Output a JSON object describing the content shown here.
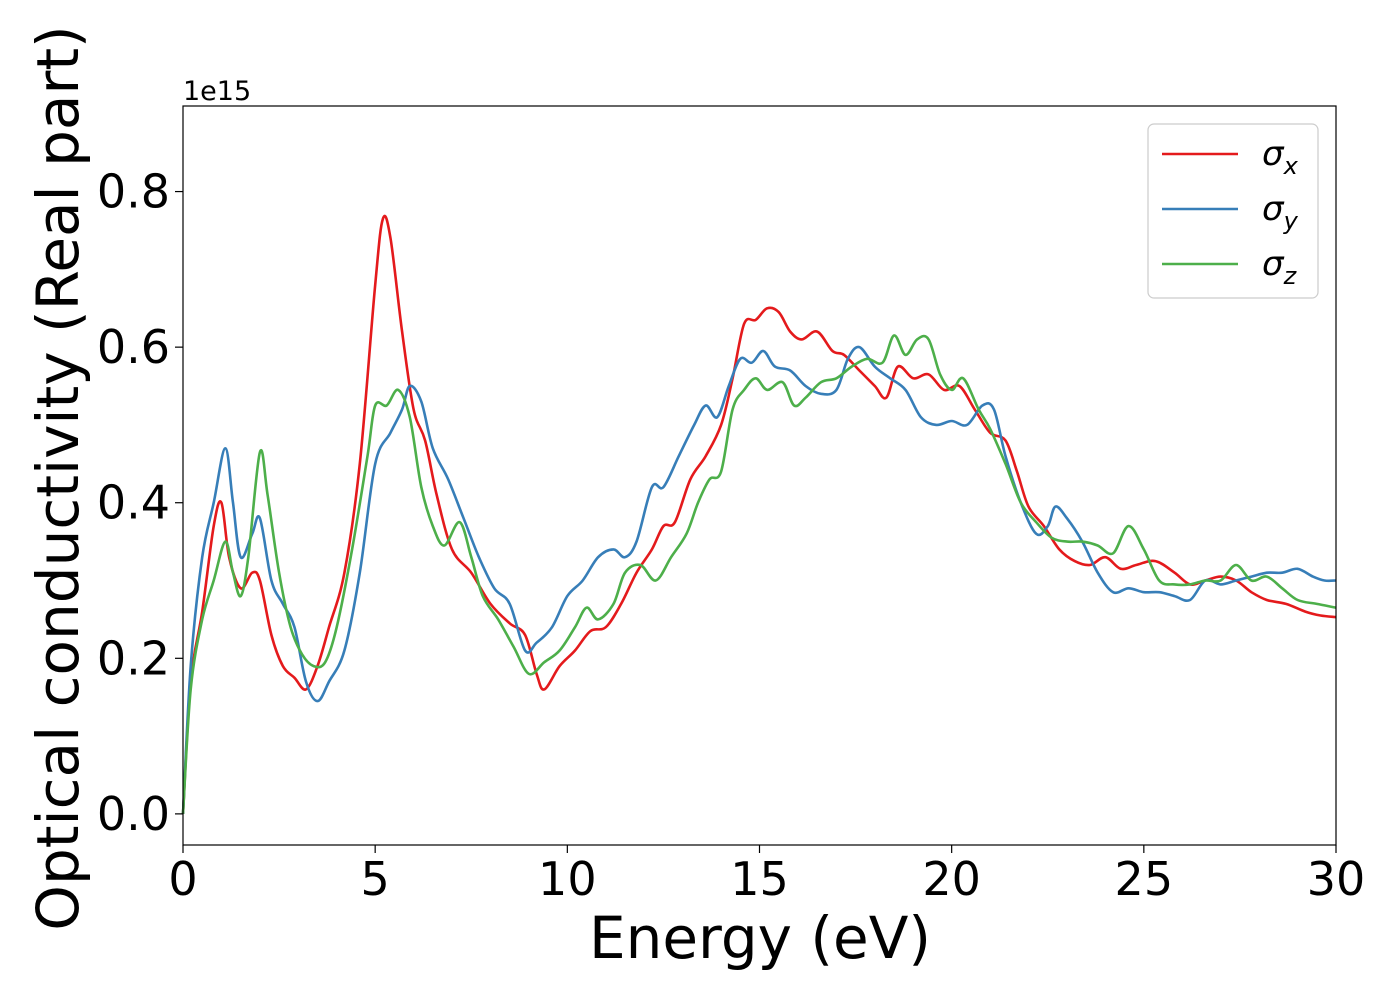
{
  "chart_data": {
    "type": "line",
    "title": "",
    "xlabel": "Energy (eV)",
    "ylabel": "Optical conductivity (Real part)",
    "y_offset_text": "1e15",
    "xlim": [
      0,
      30
    ],
    "ylim": [
      -0.04,
      0.91
    ],
    "xticks": [
      0,
      5,
      10,
      15,
      20,
      25,
      30
    ],
    "yticks": [
      0.0,
      0.2,
      0.4,
      0.6,
      0.8
    ],
    "grid": false,
    "legend_position": "top-right",
    "series": [
      {
        "name": "σx",
        "symbol": "σ",
        "subscript": "x",
        "color": "#e41a1c",
        "points": [
          [
            0,
            0.0
          ],
          [
            0.2,
            0.17
          ],
          [
            0.5,
            0.26
          ],
          [
            0.8,
            0.37
          ],
          [
            1.0,
            0.4
          ],
          [
            1.2,
            0.33
          ],
          [
            1.5,
            0.29
          ],
          [
            1.8,
            0.31
          ],
          [
            2.0,
            0.3
          ],
          [
            2.3,
            0.23
          ],
          [
            2.6,
            0.19
          ],
          [
            2.9,
            0.175
          ],
          [
            3.2,
            0.16
          ],
          [
            3.5,
            0.19
          ],
          [
            3.8,
            0.24
          ],
          [
            4.2,
            0.31
          ],
          [
            4.6,
            0.45
          ],
          [
            5.0,
            0.68
          ],
          [
            5.2,
            0.765
          ],
          [
            5.4,
            0.74
          ],
          [
            5.7,
            0.62
          ],
          [
            6.0,
            0.52
          ],
          [
            6.3,
            0.48
          ],
          [
            6.6,
            0.41
          ],
          [
            7.0,
            0.34
          ],
          [
            7.5,
            0.31
          ],
          [
            8.0,
            0.27
          ],
          [
            8.5,
            0.245
          ],
          [
            8.9,
            0.23
          ],
          [
            9.2,
            0.18
          ],
          [
            9.4,
            0.16
          ],
          [
            9.8,
            0.19
          ],
          [
            10.2,
            0.21
          ],
          [
            10.6,
            0.235
          ],
          [
            11.0,
            0.24
          ],
          [
            11.4,
            0.27
          ],
          [
            11.8,
            0.31
          ],
          [
            12.2,
            0.34
          ],
          [
            12.5,
            0.37
          ],
          [
            12.8,
            0.375
          ],
          [
            13.2,
            0.43
          ],
          [
            13.6,
            0.46
          ],
          [
            14.0,
            0.5
          ],
          [
            14.3,
            0.56
          ],
          [
            14.6,
            0.63
          ],
          [
            14.9,
            0.635
          ],
          [
            15.2,
            0.65
          ],
          [
            15.5,
            0.645
          ],
          [
            15.8,
            0.62
          ],
          [
            16.1,
            0.61
          ],
          [
            16.5,
            0.62
          ],
          [
            16.9,
            0.595
          ],
          [
            17.2,
            0.59
          ],
          [
            17.6,
            0.57
          ],
          [
            18.0,
            0.55
          ],
          [
            18.3,
            0.535
          ],
          [
            18.6,
            0.575
          ],
          [
            19.0,
            0.56
          ],
          [
            19.4,
            0.565
          ],
          [
            19.8,
            0.545
          ],
          [
            20.2,
            0.55
          ],
          [
            20.6,
            0.52
          ],
          [
            21.0,
            0.49
          ],
          [
            21.4,
            0.48
          ],
          [
            21.7,
            0.44
          ],
          [
            22.0,
            0.395
          ],
          [
            22.4,
            0.37
          ],
          [
            22.8,
            0.34
          ],
          [
            23.2,
            0.325
          ],
          [
            23.6,
            0.32
          ],
          [
            24.0,
            0.33
          ],
          [
            24.4,
            0.315
          ],
          [
            24.8,
            0.32
          ],
          [
            25.3,
            0.325
          ],
          [
            25.8,
            0.31
          ],
          [
            26.2,
            0.295
          ],
          [
            26.6,
            0.3
          ],
          [
            27.0,
            0.305
          ],
          [
            27.4,
            0.3
          ],
          [
            27.8,
            0.285
          ],
          [
            28.2,
            0.275
          ],
          [
            28.7,
            0.27
          ],
          [
            29.2,
            0.26
          ],
          [
            29.6,
            0.255
          ],
          [
            30.0,
            0.253
          ]
        ]
      },
      {
        "name": "σy",
        "symbol": "σ",
        "subscript": "y",
        "color": "#377eb8",
        "points": [
          [
            0,
            0.0
          ],
          [
            0.2,
            0.19
          ],
          [
            0.5,
            0.33
          ],
          [
            0.8,
            0.4
          ],
          [
            1.1,
            0.47
          ],
          [
            1.3,
            0.4
          ],
          [
            1.5,
            0.33
          ],
          [
            1.8,
            0.36
          ],
          [
            2.0,
            0.38
          ],
          [
            2.3,
            0.3
          ],
          [
            2.6,
            0.27
          ],
          [
            2.9,
            0.24
          ],
          [
            3.2,
            0.17
          ],
          [
            3.5,
            0.145
          ],
          [
            3.8,
            0.17
          ],
          [
            4.2,
            0.21
          ],
          [
            4.6,
            0.31
          ],
          [
            5.0,
            0.45
          ],
          [
            5.4,
            0.49
          ],
          [
            5.7,
            0.52
          ],
          [
            5.9,
            0.55
          ],
          [
            6.2,
            0.53
          ],
          [
            6.5,
            0.47
          ],
          [
            6.9,
            0.43
          ],
          [
            7.3,
            0.38
          ],
          [
            7.7,
            0.33
          ],
          [
            8.1,
            0.29
          ],
          [
            8.5,
            0.27
          ],
          [
            8.9,
            0.21
          ],
          [
            9.2,
            0.22
          ],
          [
            9.6,
            0.24
          ],
          [
            10.0,
            0.28
          ],
          [
            10.4,
            0.3
          ],
          [
            10.8,
            0.33
          ],
          [
            11.2,
            0.34
          ],
          [
            11.5,
            0.33
          ],
          [
            11.8,
            0.35
          ],
          [
            12.2,
            0.42
          ],
          [
            12.5,
            0.42
          ],
          [
            12.9,
            0.46
          ],
          [
            13.3,
            0.5
          ],
          [
            13.6,
            0.525
          ],
          [
            13.9,
            0.51
          ],
          [
            14.2,
            0.55
          ],
          [
            14.5,
            0.585
          ],
          [
            14.8,
            0.58
          ],
          [
            15.1,
            0.595
          ],
          [
            15.4,
            0.575
          ],
          [
            15.8,
            0.57
          ],
          [
            16.2,
            0.55
          ],
          [
            16.6,
            0.54
          ],
          [
            17.0,
            0.545
          ],
          [
            17.3,
            0.585
          ],
          [
            17.6,
            0.6
          ],
          [
            18.0,
            0.575
          ],
          [
            18.4,
            0.56
          ],
          [
            18.8,
            0.545
          ],
          [
            19.2,
            0.51
          ],
          [
            19.6,
            0.5
          ],
          [
            20.0,
            0.505
          ],
          [
            20.4,
            0.5
          ],
          [
            20.8,
            0.525
          ],
          [
            21.1,
            0.52
          ],
          [
            21.4,
            0.46
          ],
          [
            21.8,
            0.4
          ],
          [
            22.2,
            0.36
          ],
          [
            22.5,
            0.37
          ],
          [
            22.7,
            0.395
          ],
          [
            23.0,
            0.38
          ],
          [
            23.4,
            0.35
          ],
          [
            23.8,
            0.31
          ],
          [
            24.2,
            0.285
          ],
          [
            24.6,
            0.29
          ],
          [
            25.0,
            0.285
          ],
          [
            25.4,
            0.285
          ],
          [
            25.8,
            0.28
          ],
          [
            26.2,
            0.275
          ],
          [
            26.6,
            0.3
          ],
          [
            27.0,
            0.295
          ],
          [
            27.4,
            0.3
          ],
          [
            27.8,
            0.305
          ],
          [
            28.2,
            0.31
          ],
          [
            28.6,
            0.31
          ],
          [
            29.0,
            0.315
          ],
          [
            29.4,
            0.305
          ],
          [
            29.7,
            0.3
          ],
          [
            30.0,
            0.3
          ]
        ]
      },
      {
        "name": "σz",
        "symbol": "σ",
        "subscript": "z",
        "color": "#4daf4a",
        "points": [
          [
            0,
            0.0
          ],
          [
            0.2,
            0.16
          ],
          [
            0.5,
            0.25
          ],
          [
            0.8,
            0.3
          ],
          [
            1.1,
            0.35
          ],
          [
            1.3,
            0.31
          ],
          [
            1.5,
            0.28
          ],
          [
            1.7,
            0.33
          ],
          [
            2.0,
            0.465
          ],
          [
            2.2,
            0.41
          ],
          [
            2.5,
            0.31
          ],
          [
            2.8,
            0.24
          ],
          [
            3.1,
            0.205
          ],
          [
            3.4,
            0.19
          ],
          [
            3.7,
            0.195
          ],
          [
            4.0,
            0.24
          ],
          [
            4.4,
            0.34
          ],
          [
            4.8,
            0.46
          ],
          [
            5.0,
            0.525
          ],
          [
            5.3,
            0.525
          ],
          [
            5.6,
            0.545
          ],
          [
            5.9,
            0.51
          ],
          [
            6.2,
            0.42
          ],
          [
            6.5,
            0.37
          ],
          [
            6.8,
            0.345
          ],
          [
            7.2,
            0.375
          ],
          [
            7.5,
            0.33
          ],
          [
            7.8,
            0.28
          ],
          [
            8.2,
            0.25
          ],
          [
            8.6,
            0.215
          ],
          [
            9.0,
            0.18
          ],
          [
            9.4,
            0.195
          ],
          [
            9.8,
            0.21
          ],
          [
            10.2,
            0.24
          ],
          [
            10.5,
            0.265
          ],
          [
            10.8,
            0.25
          ],
          [
            11.2,
            0.27
          ],
          [
            11.5,
            0.31
          ],
          [
            11.9,
            0.32
          ],
          [
            12.3,
            0.3
          ],
          [
            12.7,
            0.33
          ],
          [
            13.1,
            0.36
          ],
          [
            13.4,
            0.4
          ],
          [
            13.7,
            0.43
          ],
          [
            14.0,
            0.44
          ],
          [
            14.3,
            0.52
          ],
          [
            14.6,
            0.545
          ],
          [
            14.9,
            0.56
          ],
          [
            15.2,
            0.545
          ],
          [
            15.6,
            0.555
          ],
          [
            15.9,
            0.525
          ],
          [
            16.2,
            0.535
          ],
          [
            16.6,
            0.555
          ],
          [
            17.0,
            0.56
          ],
          [
            17.4,
            0.575
          ],
          [
            17.8,
            0.585
          ],
          [
            18.2,
            0.58
          ],
          [
            18.5,
            0.615
          ],
          [
            18.8,
            0.59
          ],
          [
            19.1,
            0.61
          ],
          [
            19.4,
            0.61
          ],
          [
            19.7,
            0.565
          ],
          [
            20.0,
            0.545
          ],
          [
            20.3,
            0.56
          ],
          [
            20.7,
            0.52
          ],
          [
            21.0,
            0.495
          ],
          [
            21.4,
            0.45
          ],
          [
            21.8,
            0.4
          ],
          [
            22.2,
            0.375
          ],
          [
            22.6,
            0.355
          ],
          [
            23.0,
            0.35
          ],
          [
            23.4,
            0.35
          ],
          [
            23.8,
            0.345
          ],
          [
            24.2,
            0.335
          ],
          [
            24.6,
            0.37
          ],
          [
            25.0,
            0.34
          ],
          [
            25.4,
            0.3
          ],
          [
            25.8,
            0.295
          ],
          [
            26.2,
            0.295
          ],
          [
            26.6,
            0.3
          ],
          [
            27.0,
            0.3
          ],
          [
            27.4,
            0.32
          ],
          [
            27.8,
            0.3
          ],
          [
            28.2,
            0.305
          ],
          [
            28.6,
            0.29
          ],
          [
            29.0,
            0.275
          ],
          [
            29.5,
            0.27
          ],
          [
            30.0,
            0.265
          ]
        ]
      }
    ]
  }
}
